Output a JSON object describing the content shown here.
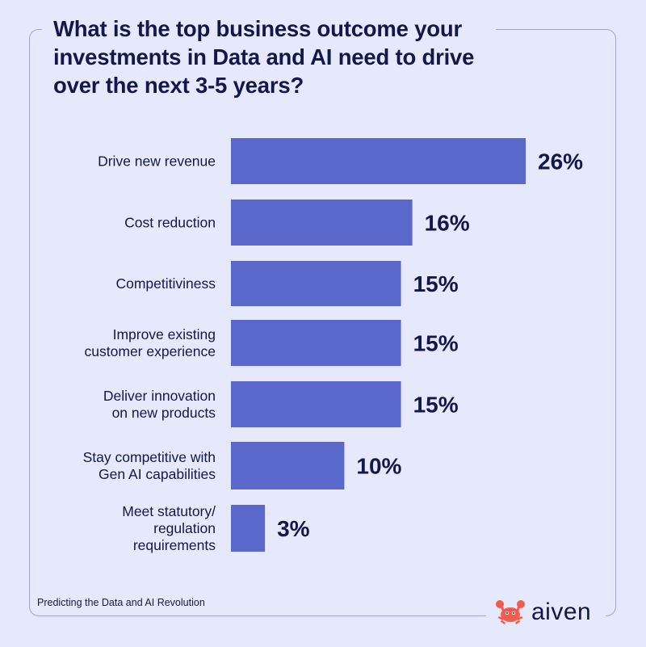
{
  "title": "What is the top business outcome your investments in Data and AI need to drive over the next 3-5 years?",
  "footer": "Predicting the Data and AI Revolution",
  "brand": {
    "name": "aiven",
    "icon": "crab-icon",
    "icon_color": "#f15d4c"
  },
  "colors": {
    "background": "#e6e8fb",
    "bar": "#5a68cc",
    "text": "#12184a",
    "frame": "#9ea6df"
  },
  "chart_data": {
    "type": "bar",
    "orientation": "horizontal",
    "categories": [
      "Drive new revenue",
      "Cost reduction",
      "Competitiviness",
      "Improve existing customer experience",
      "Deliver innovation on new products",
      "Stay competitive with Gen AI capabilities",
      "Meet statutory/ regulation requirements"
    ],
    "category_lines": [
      [
        "Drive new revenue"
      ],
      [
        "Cost reduction"
      ],
      [
        "Competitiviness"
      ],
      [
        "Improve existing",
        "customer experience"
      ],
      [
        "Deliver innovation",
        "on new products"
      ],
      [
        "Stay competitive with",
        "Gen AI capabilities"
      ],
      [
        "Meet statutory/",
        "regulation",
        "requirements"
      ]
    ],
    "values": [
      26,
      16,
      15,
      15,
      15,
      10,
      3
    ],
    "value_labels": [
      "26%",
      "16%",
      "15%",
      "15%",
      "15%",
      "10%",
      "3%"
    ],
    "unit": "%",
    "xlim": [
      0,
      26
    ],
    "grid": false,
    "legend": "none"
  }
}
